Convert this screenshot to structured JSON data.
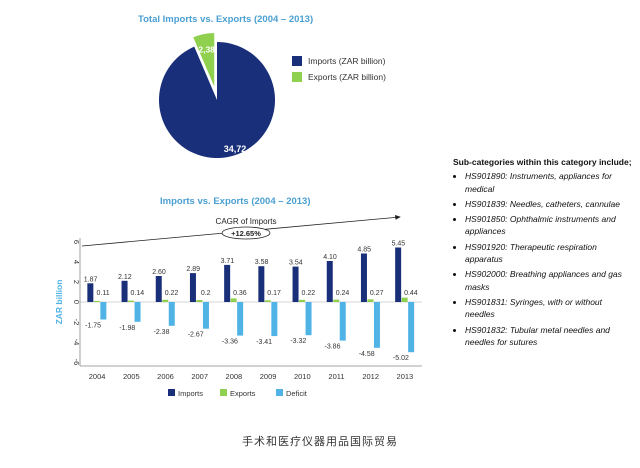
{
  "colors": {
    "imports": "#1a2f7a",
    "exports": "#8fd14f",
    "deficit": "#4fb3e6",
    "title": "#4a9fd3"
  },
  "chart_data": [
    {
      "type": "pie",
      "title": "Total Imports vs. Exports (2004 – 2013)",
      "labels": [
        "Imports (ZAR billion)",
        "Exports (ZAR billion)"
      ],
      "values": [
        34.72,
        2.38
      ],
      "value_labels": [
        "34,72",
        "2,38"
      ],
      "legend": "right"
    },
    {
      "type": "bar",
      "title": "Imports vs. Exports (2004 – 2013)",
      "ylabel": "ZAR billion",
      "ylim": [
        -6,
        6
      ],
      "yticks": [
        "6",
        "4",
        "2",
        "0",
        "-2",
        "-4",
        "-6"
      ],
      "categories": [
        "2004",
        "2005",
        "2006",
        "2007",
        "2008",
        "2009",
        "2010",
        "2011",
        "2012",
        "2013"
      ],
      "series": [
        {
          "name": "Imports",
          "values": [
            1.87,
            2.12,
            2.6,
            2.89,
            3.71,
            3.58,
            3.54,
            4.1,
            4.85,
            5.45
          ],
          "labels": [
            "1.87",
            "2.12",
            "2.60",
            "2.89",
            "3.71",
            "3.58",
            "3.54",
            "4.10",
            "4.85",
            "5.45"
          ]
        },
        {
          "name": "Exports",
          "values": [
            0.11,
            0.14,
            0.22,
            0.2,
            0.36,
            0.17,
            0.22,
            0.24,
            0.27,
            0.44
          ],
          "labels": [
            "0.11",
            "0.14",
            "0.22",
            "0.2",
            "0.36",
            "0.17",
            "0.22",
            "0.24",
            "0.27",
            "0.44"
          ]
        },
        {
          "name": "Deficit",
          "values": [
            -1.75,
            -1.98,
            -2.38,
            -2.67,
            -3.36,
            -3.41,
            -3.32,
            -3.86,
            -4.58,
            -5.02
          ],
          "labels": [
            "-1.75",
            "-1.98",
            "-2.38",
            "-2.67",
            "-3.36",
            "-3.41",
            "-3.32",
            "-3.86",
            "-4.58",
            "-5.02"
          ]
        }
      ],
      "annotation": {
        "text": "CAGR of Imports",
        "value": "+12.65%"
      },
      "legend": "bottom"
    }
  ],
  "subcategories": {
    "heading": "Sub-categories within this category include;",
    "items": [
      "HS901890: Instruments, appliances for medical",
      "HS901839: Needles, catheters, cannulae",
      "HS901850: Ophthalmic instruments and appliances",
      "HS901920: Therapeutic respiration apparatus",
      "HS902000: Breathing appliances and gas masks",
      "HS901831: Syringes, with or without needles",
      "HS901832: Tubular metal needles and needles for sutures"
    ]
  },
  "caption": "手术和医疗仪器用品国际贸易"
}
